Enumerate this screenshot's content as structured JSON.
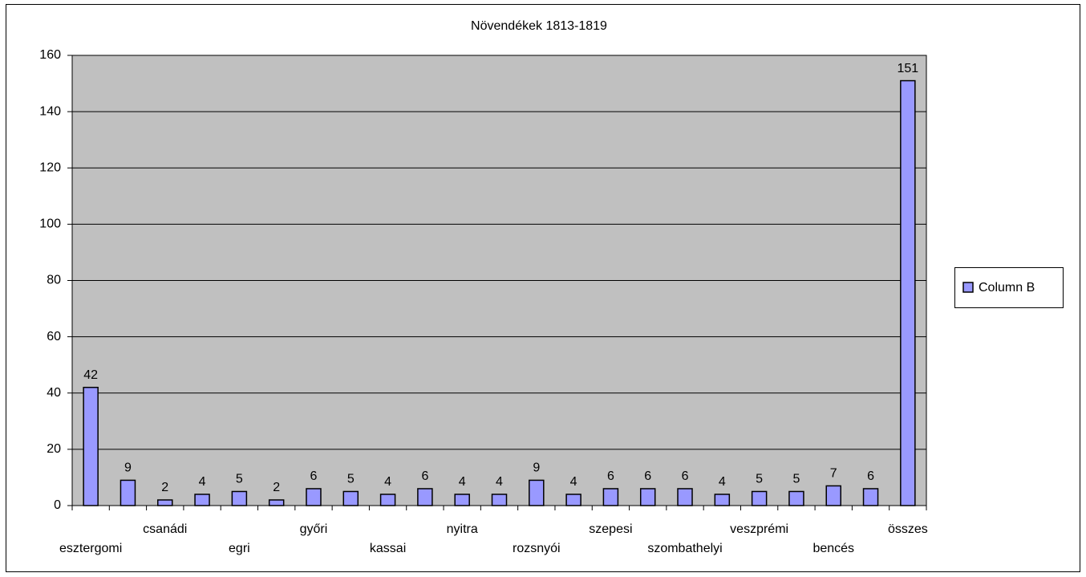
{
  "chart_data": {
    "type": "bar",
    "title": "Növendékek 1813-1819",
    "categories": [
      "esztergomi",
      null,
      "csanádi",
      null,
      "egri",
      null,
      "győri",
      null,
      "kassai",
      null,
      "nyitra",
      null,
      "rozsnyói",
      null,
      "szepesi",
      null,
      "szombathelyi",
      null,
      "veszprémi",
      null,
      "bencés",
      null,
      "összes"
    ],
    "series": [
      {
        "name": "Column B",
        "color": "#9999ff",
        "values": [
          42,
          9,
          2,
          4,
          5,
          2,
          6,
          5,
          4,
          6,
          4,
          4,
          9,
          4,
          6,
          6,
          6,
          4,
          5,
          5,
          7,
          6,
          151
        ]
      }
    ],
    "ylim": [
      0,
      160
    ],
    "yticks": [
      0,
      20,
      40,
      60,
      80,
      100,
      120,
      140,
      160
    ],
    "grid": true,
    "legend": "right",
    "plot_background": "#c0c0c0"
  }
}
